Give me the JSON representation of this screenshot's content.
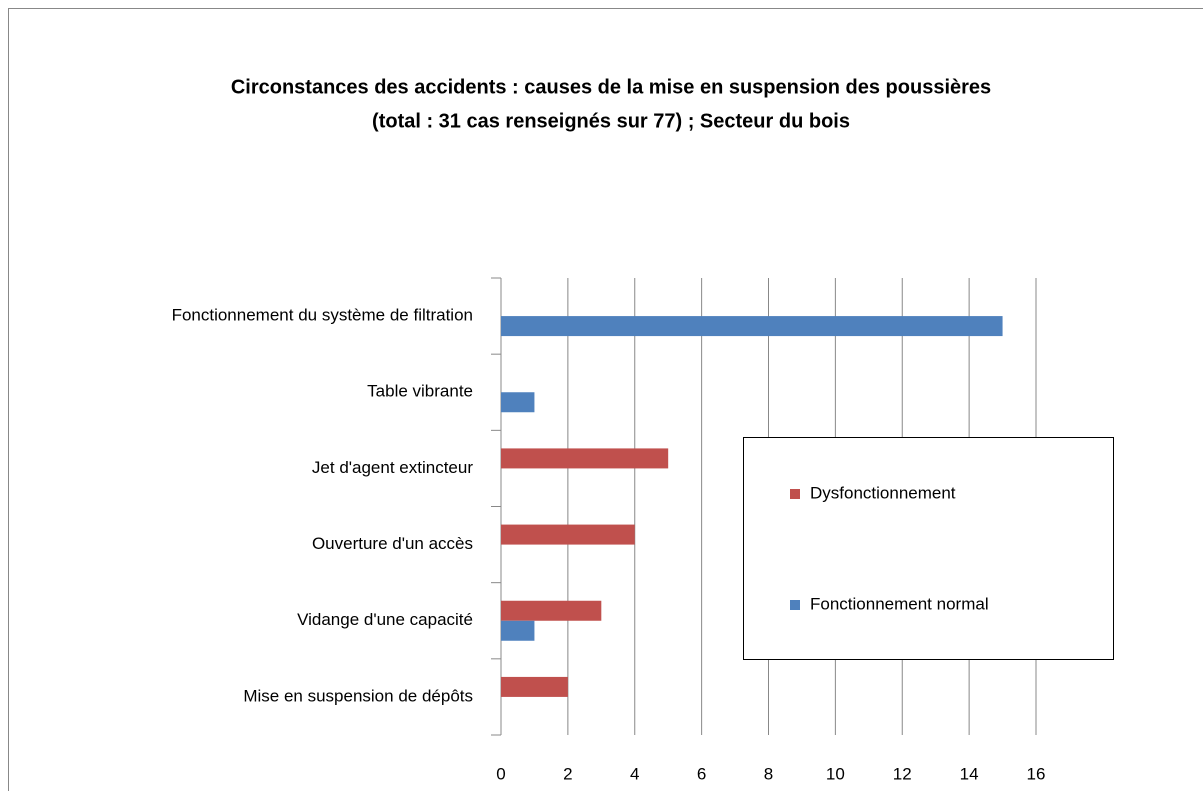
{
  "chart_data": {
    "type": "bar",
    "orientation": "horizontal",
    "title": [
      "Circonstances des accidents : causes de la mise en suspension des poussières",
      "(total : 31 cas renseignés sur 77) ; Secteur du bois"
    ],
    "categories": [
      "Fonctionnement du système de filtration",
      "Table vibrante",
      "Jet d'agent extincteur",
      "Ouverture d'un accès",
      "Vidange d'une capacité",
      "Mise en suspension de dépôts"
    ],
    "series": [
      {
        "name": "Dysfonctionnement",
        "color": "#c0504d",
        "values": [
          null,
          null,
          5,
          4,
          3,
          2
        ]
      },
      {
        "name": "Fonctionnement normal",
        "color": "#4f81bd",
        "values": [
          15,
          1,
          null,
          null,
          1,
          null
        ]
      }
    ],
    "xlim": [
      0,
      16
    ],
    "xticks": [
      0,
      2,
      4,
      6,
      8,
      10,
      12,
      14,
      16
    ],
    "grid": true,
    "legend": "right"
  }
}
